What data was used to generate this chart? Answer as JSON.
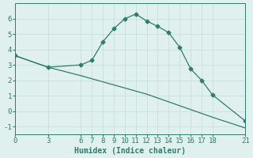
{
  "xlabel": "Humidex (Indice chaleur)",
  "series1_x": [
    0,
    3,
    6,
    7,
    8,
    9,
    10,
    11,
    12,
    13,
    14,
    15,
    16,
    17,
    18,
    21
  ],
  "series1_y": [
    3.6,
    2.85,
    3.0,
    3.3,
    4.5,
    5.35,
    6.0,
    6.3,
    5.85,
    5.5,
    5.1,
    4.15,
    2.75,
    2.0,
    1.05,
    -0.65
  ],
  "series2_x": [
    0,
    3,
    6,
    7,
    8,
    9,
    10,
    11,
    12,
    13,
    14,
    15,
    16,
    17,
    18,
    21
  ],
  "series2_y": [
    3.6,
    2.85,
    2.3,
    2.1,
    1.9,
    1.7,
    1.5,
    1.3,
    1.1,
    0.85,
    0.6,
    0.35,
    0.1,
    -0.15,
    -0.4,
    -1.1
  ],
  "line_color": "#2e7d6e",
  "marker": "D",
  "marker_size": 2.5,
  "xlim": [
    0,
    21
  ],
  "ylim": [
    -1.5,
    7
  ],
  "xticks": [
    0,
    3,
    6,
    7,
    8,
    9,
    10,
    11,
    12,
    13,
    14,
    15,
    16,
    17,
    18,
    21
  ],
  "yticks": [
    -1,
    0,
    1,
    2,
    3,
    4,
    5,
    6
  ],
  "background_color": "#dff0ee",
  "grid_color": "#c8e0dc",
  "font_size": 6.5
}
